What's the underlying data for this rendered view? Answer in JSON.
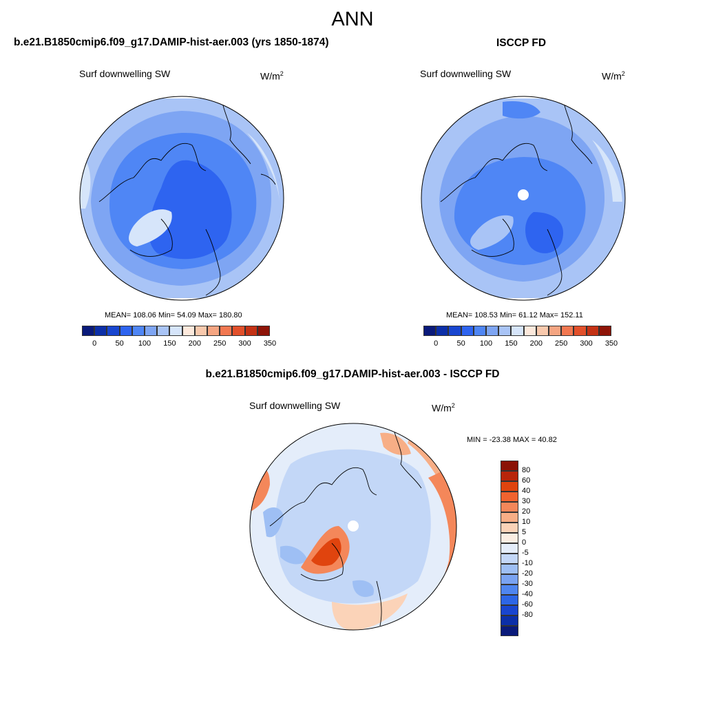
{
  "title": "ANN",
  "panels": [
    {
      "heading": "b.e21.B1850cmip6.f09_g17.DAMIP-hist-aer.003 (yrs 1850-1874)",
      "variable": "Surf downwelling SW",
      "units_base": "W/m",
      "units_exp": "2",
      "stats": "MEAN= 108.06  Min=  54.09  Max= 180.80"
    },
    {
      "heading": "ISCCP FD",
      "variable": "Surf downwelling SW",
      "units_base": "W/m",
      "units_exp": "2",
      "stats": "MEAN= 108.53  Min=  61.12  Max= 152.11"
    },
    {
      "heading": "b.e21.B1850cmip6.f09_g17.DAMIP-hist-aer.003 - ISCCP FD",
      "variable": "Surf downwelling SW",
      "units_base": "W/m",
      "units_exp": "2",
      "stats": "MIN = -23.38 MAX =  40.82"
    }
  ],
  "abs_colorbar": {
    "colors": [
      "#0a1a7a",
      "#0c2fa8",
      "#1946d0",
      "#2e64f0",
      "#4f86f5",
      "#7ea5f3",
      "#a9c4f6",
      "#d6e5fa",
      "#fde9dc",
      "#f9c9ad",
      "#f5a582",
      "#f27851",
      "#e2502b",
      "#c43215",
      "#8e1408"
    ],
    "labels": [
      "0",
      "50",
      "100",
      "150",
      "200",
      "250",
      "300",
      "350"
    ]
  },
  "diff_colorbar": {
    "colors": [
      "#8a1206",
      "#b8250a",
      "#e0440e",
      "#f0632f",
      "#f4875a",
      "#f7ae86",
      "#fbd3b8",
      "#fbeee3",
      "#e4edfa",
      "#c3d7f7",
      "#9ebff4",
      "#7aa3f1",
      "#4f86ef",
      "#2d66e6",
      "#1945cf",
      "#0c2fa8",
      "#0a1a7a"
    ],
    "labels": [
      "80",
      "60",
      "40",
      "30",
      "20",
      "10",
      "5",
      "0",
      "-5",
      "-10",
      "-20",
      "-30",
      "-40",
      "-60",
      "-80"
    ]
  }
}
